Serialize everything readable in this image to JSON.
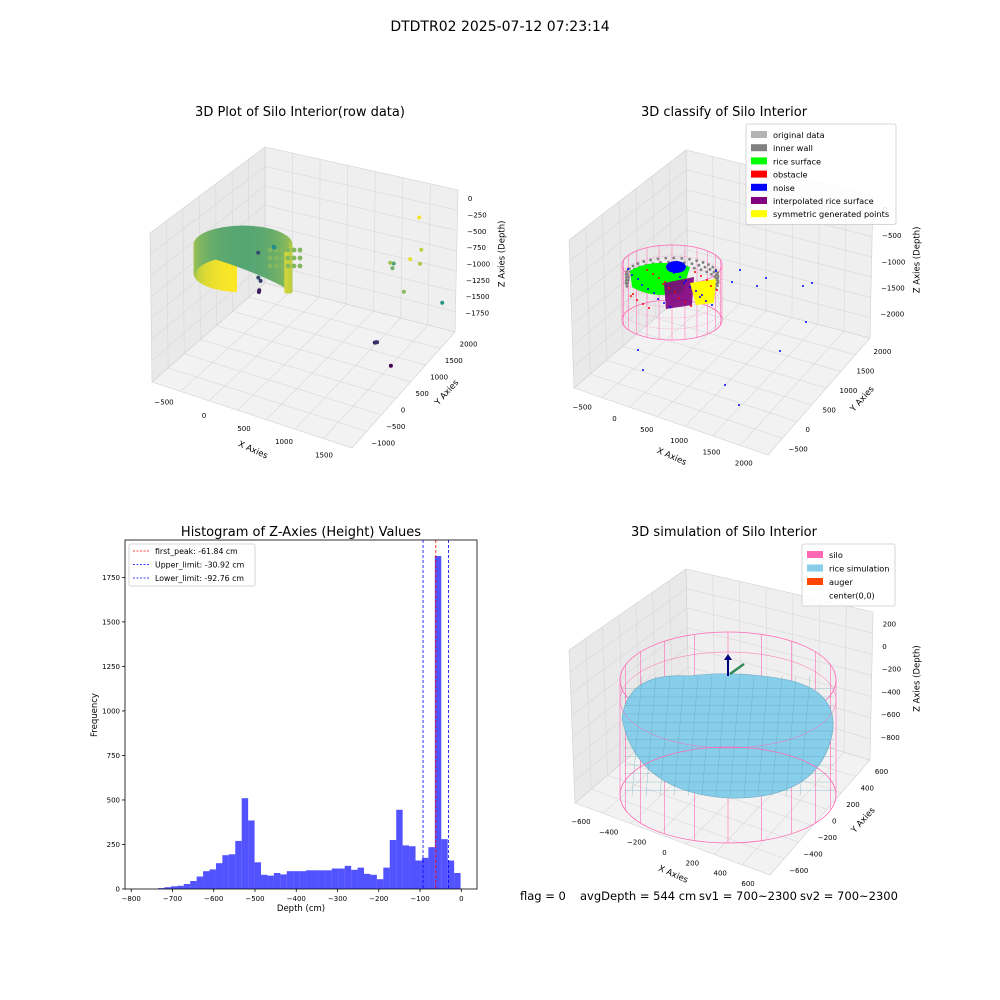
{
  "figure_title": "DTDTR02 2025-07-12 07:23:14",
  "footer": {
    "flag": "flag = 0",
    "avg_depth": "avgDepth = 544 cm",
    "sv1": "sv1 = 700~2300",
    "sv2": "sv2 = 700~2300"
  },
  "colors": {
    "raw_low": "#440154",
    "raw_mid": "#21918c",
    "raw_high": "#fde725",
    "original": "#b3b3b3",
    "inner_wall": "#808080",
    "rice_surface": "#00ff00",
    "obstacle": "#ff0000",
    "noise": "#0000ff",
    "interp_surface": "#800080",
    "symmetric": "#ffff00",
    "silo": "#ff69b4",
    "rice_sim": "#87ceeb",
    "auger": "#ff4500",
    "hist_bar": "#0000ff"
  },
  "chart_data": [
    {
      "id": "raw",
      "type": "scatter",
      "title": "3D Plot of Silo Interior(row data)",
      "xlabel": "X Axies",
      "ylabel": "Y Axies",
      "zlabel": "Z Axies (Depth)",
      "xticks": [
        "−500",
        "0",
        "500",
        "1000",
        "1500"
      ],
      "yticks": [
        "−1000",
        "−500",
        "0",
        "500",
        "1000",
        "1500",
        "2000"
      ],
      "zticks": [
        "0",
        "−250",
        "−500",
        "−750",
        "−1000",
        "−1250",
        "−1500",
        "−1750"
      ],
      "series": [
        {
          "values": [
            [
              -230,
              1500,
              -1750
            ],
            [
              -220,
              1490,
              -1720
            ],
            [
              -180,
              1370,
              -1500
            ],
            [
              -170,
              1420,
              -1560
            ],
            [
              -420,
              1900,
              -1500
            ],
            [
              1550,
              1150,
              -1700
            ],
            [
              1600,
              1080,
              -1650
            ],
            [
              1650,
              1000,
              -1600
            ],
            [
              1830,
              1030,
              -1850
            ],
            [
              -60,
              1580,
              -1180
            ],
            [
              -20,
              1520,
              -1150
            ],
            [
              1540,
              1760,
              -1000
            ],
            [
              1650,
              1480,
              -900
            ],
            [
              1690,
              1320,
              -750
            ],
            [
              2050,
              1140,
              -520
            ],
            [
              1780,
              2020,
              -480
            ],
            [
              1980,
              1640,
              -650
            ],
            [
              2060,
              1420,
              -700
            ],
            [
              2070,
              900,
              -810
            ],
            [
              2350,
              1470,
              -1120
            ]
          ]
        }
      ]
    },
    {
      "id": "classify",
      "type": "scatter",
      "title": "3D classify of Silo Interior",
      "xlabel": "X Axies",
      "ylabel": "Y Axies",
      "zlabel": "Z Axies (Depth)",
      "xticks": [
        "−500",
        "0",
        "500",
        "1000",
        "1500",
        "2000"
      ],
      "yticks": [
        "−500",
        "0",
        "500",
        "1000",
        "1500",
        "2000"
      ],
      "zticks": [
        "0",
        "−500",
        "−1000",
        "−1500",
        "−2000"
      ],
      "legend": [
        "original data",
        "inner wall",
        "rice surface",
        "obstacle",
        "noise",
        "interpolated rice surface",
        "symmetric generated points"
      ],
      "legend_keys": [
        "original",
        "inner_wall",
        "rice_surface",
        "obstacle",
        "noise",
        "interp_surface",
        "symmetric"
      ],
      "legend_position": "upper right"
    },
    {
      "id": "hist",
      "type": "bar",
      "title": "Histogram of Z-Axies (Height) Values",
      "xlabel": "Depth (cm)",
      "ylabel": "Frequency",
      "xlim": [
        -815,
        38
      ],
      "ylim": [
        0,
        1960
      ],
      "xticks": [
        -800,
        -700,
        -600,
        -500,
        -400,
        -300,
        -200,
        -100,
        0
      ],
      "yticks": [
        0,
        250,
        500,
        750,
        1000,
        1250,
        1500,
        1750
      ],
      "bin_width": 15.6,
      "bins_start": [
        -735,
        -719.4,
        -703.8,
        -688.2,
        -672.6,
        -657,
        -641.4,
        -625.8,
        -610.2,
        -594.6,
        -579,
        -563.4,
        -547.8,
        -532.2,
        -516.6,
        -501,
        -485.4,
        -469.8,
        -454.2,
        -438.6,
        -423,
        -407.4,
        -391.8,
        -376.2,
        -360.6,
        -345,
        -329.4,
        -313.8,
        -298.2,
        -282.6,
        -267,
        -251.4,
        -235.8,
        -220.2,
        -204.6,
        -189,
        -173.4,
        -157.8,
        -142.2,
        -126.6,
        -111,
        -95.4,
        -79.8,
        -64.2,
        -48.6,
        -33,
        -17.4,
        -1.8
      ],
      "values": [
        5,
        10,
        15,
        18,
        28,
        45,
        70,
        100,
        110,
        145,
        190,
        195,
        270,
        510,
        385,
        150,
        80,
        75,
        90,
        82,
        100,
        100,
        100,
        105,
        105,
        105,
        105,
        115,
        115,
        130,
        108,
        120,
        85,
        80,
        55,
        120,
        275,
        445,
        245,
        240,
        160,
        175,
        235,
        1870,
        280,
        160,
        90,
        0
      ],
      "lines": [
        {
          "name": "first_peak: -61.84 cm",
          "x": -61.84,
          "color": "#ff0000"
        },
        {
          "name": "Upper_limit: -30.92 cm",
          "x": -30.92,
          "color": "#0000ff"
        },
        {
          "name": "Lower_limit: -92.76 cm",
          "x": -92.76,
          "color": "#0000ff"
        }
      ],
      "legend_position": "upper left"
    },
    {
      "id": "sim",
      "type": "scatter",
      "title": "3D simulation of Silo Interior",
      "xlabel": "X Axies",
      "ylabel": "Y Axies",
      "zlabel": "Z Axies (Depth)",
      "xticks": [
        "−600",
        "−400",
        "−200",
        "0",
        "200",
        "400",
        "600"
      ],
      "yticks": [
        "−600",
        "−400",
        "−200",
        "0",
        "200",
        "400",
        "600"
      ],
      "zticks": [
        "200",
        "0",
        "−200",
        "−400",
        "−600",
        "−800"
      ],
      "legend": [
        "silo",
        "rice simulation",
        "auger",
        "center(0,0)"
      ],
      "legend_keys": [
        "silo",
        "rice_sim",
        "auger",
        "none"
      ],
      "legend_position": "upper right"
    }
  ]
}
